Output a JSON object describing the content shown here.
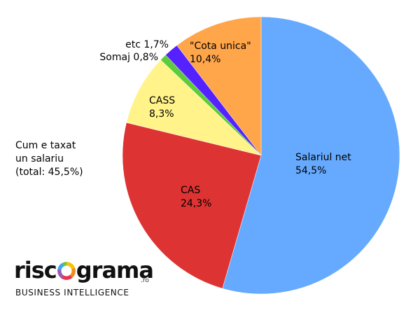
{
  "chart_data": {
    "type": "pie",
    "title": "",
    "slices": [
      {
        "label": "Salariul net",
        "value_text": "54,5%",
        "value": 54.5,
        "color": "#66aaff"
      },
      {
        "label": "CAS",
        "value_text": "24,3%",
        "value": 24.3,
        "color": "#dd3333"
      },
      {
        "label": "CASS",
        "value_text": "8,3%",
        "value": 8.3,
        "color": "#fff38a"
      },
      {
        "label": "Somaj",
        "value_text": "0,8%",
        "value": 0.8,
        "color": "#5ecb3a"
      },
      {
        "label": "etc",
        "value_text": "1,7%",
        "value": 1.7,
        "color": "#5522ff"
      },
      {
        "label": "\"Cota unica\"",
        "value_text": "10,4%",
        "value": 10.4,
        "color": "#ffa54a"
      }
    ],
    "note_lines": [
      "Cum e taxat",
      "un salariu",
      "(total: 45,5%)"
    ]
  },
  "logo": {
    "word_left": "risc",
    "word_right": "grama",
    "suffix": ".ro",
    "tagline": "BUSINESS INTELLIGENCE"
  }
}
